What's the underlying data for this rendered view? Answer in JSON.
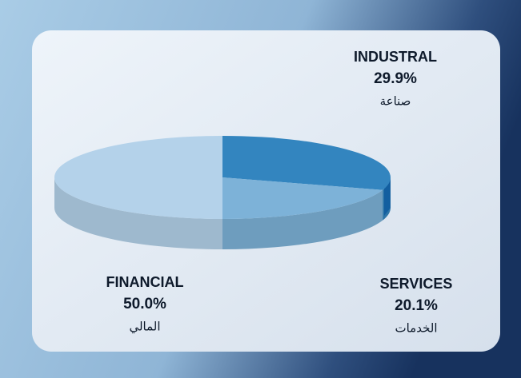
{
  "chart_data": {
    "type": "pie",
    "categories": [
      "INDUSTRAL",
      "SERVICES",
      "FINANCIAL"
    ],
    "categories_ar": [
      "صناعة",
      "الخدمات",
      "المالي"
    ],
    "values": [
      29.9,
      20.1,
      50.0
    ],
    "value_labels": [
      "29.9%",
      "20.1%",
      "50.0%"
    ],
    "colors": [
      "#3385bf",
      "#7db2d8",
      "#b4d2ea"
    ]
  }
}
